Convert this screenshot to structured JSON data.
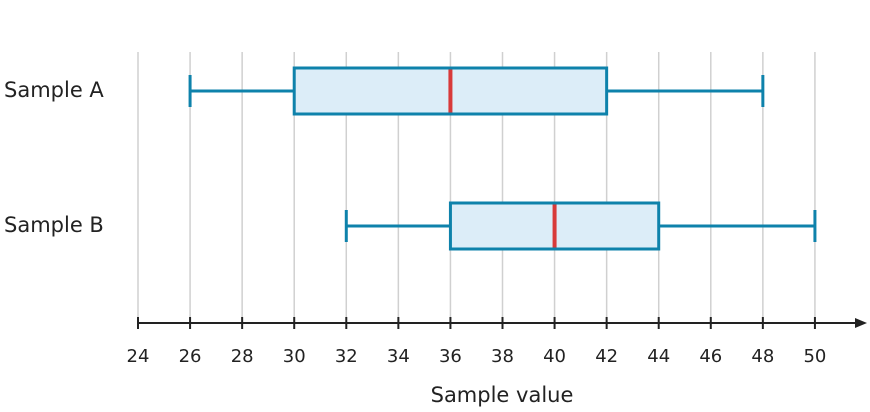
{
  "chart_data": {
    "type": "boxplot",
    "x_label": "Sample value",
    "xlim": [
      24,
      52
    ],
    "xticks": [
      24,
      26,
      28,
      30,
      32,
      34,
      36,
      38,
      40,
      42,
      44,
      46,
      48,
      50
    ],
    "grid": true,
    "box_color": "#0e82ab",
    "box_fill": "#dcedf8",
    "median_color": "#d83a3a",
    "boxes": [
      {
        "name": "Sample A",
        "min": 26,
        "q1": 30,
        "median": 36,
        "q3": 42,
        "max": 48
      },
      {
        "name": "Sample B",
        "min": 32,
        "q1": 36,
        "median": 40,
        "q3": 44,
        "max": 50
      }
    ]
  }
}
